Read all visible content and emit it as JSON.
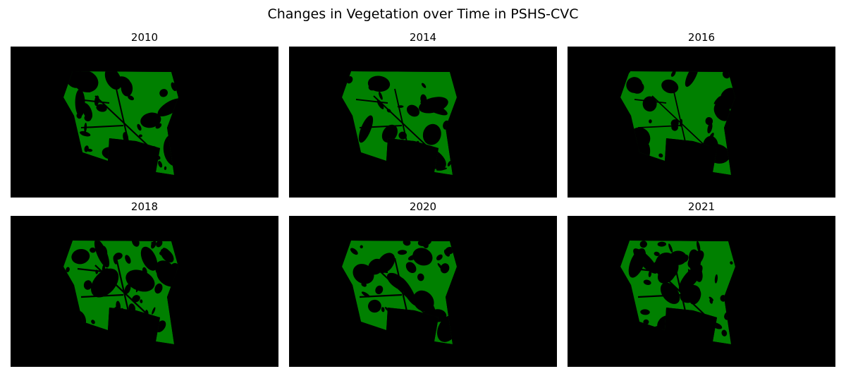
{
  "figure": {
    "title": "Changes in Vegetation over Time in PSHS-CVC"
  },
  "colors": {
    "vegetation": "#008000",
    "background": "#000000"
  },
  "panels": [
    {
      "year": "2010",
      "vegetation_fraction": 0.55
    },
    {
      "year": "2014",
      "vegetation_fraction": 0.65
    },
    {
      "year": "2016",
      "vegetation_fraction": 0.7
    },
    {
      "year": "2018",
      "vegetation_fraction": 0.45
    },
    {
      "year": "2020",
      "vegetation_fraction": 0.5
    },
    {
      "year": "2021",
      "vegetation_fraction": 0.48
    }
  ]
}
